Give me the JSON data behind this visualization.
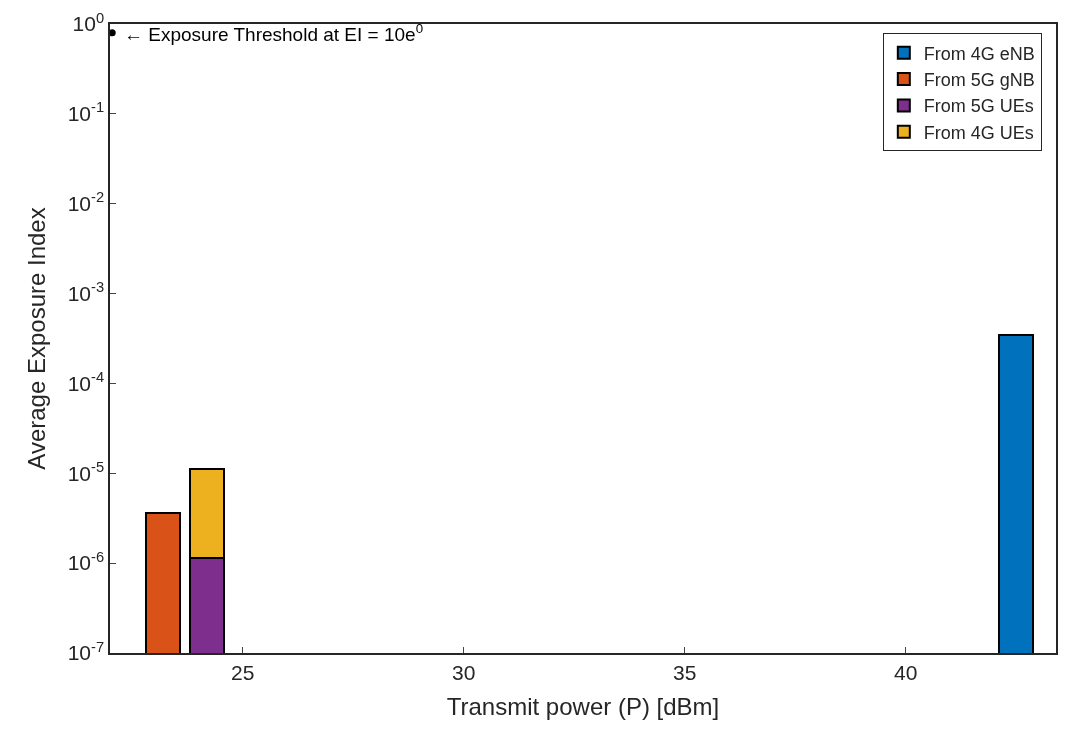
{
  "chart_data": {
    "type": "bar",
    "xlabel": "Transmit power (P) [dBm]",
    "ylabel": "Average Exposure Index",
    "stacked": true,
    "log": "y",
    "x": [
      23.2,
      24.2,
      42.5
    ],
    "legend": "top right",
    "xlim": [
      22,
      43.4
    ],
    "xticks": [
      25,
      30,
      35,
      40
    ],
    "ylim": [
      1e-07,
      1
    ],
    "yticks": [
      {
        "value": 1e-07,
        "label": "10$^{-7}$"
      },
      {
        "value": 1e-06,
        "label": "10$^{-6}$"
      },
      {
        "value": 1e-05,
        "label": "10$^{-5}$"
      },
      {
        "value": 0.0001,
        "label": "10$^{-4}$"
      },
      {
        "value": 0.001,
        "label": "10$^{-3}$"
      },
      {
        "value": 0.01,
        "label": "10$^{-2}$"
      },
      {
        "value": 0.1,
        "label": "10$^{-1}$"
      },
      {
        "value": 1,
        "label": "10$^{0}$"
      }
    ],
    "series": [
      {
        "name": "From 4G eNB",
        "color": "#0072bd",
        "values": [
          null,
          null,
          0.00035
        ]
      },
      {
        "name": "From 5G gNB",
        "color": "#d95319",
        "values": [
          3.6e-06,
          null,
          null
        ]
      },
      {
        "name": "From 5G UEs",
        "color": "#7e2f8e",
        "values": [
          null,
          1.15e-06,
          null
        ]
      },
      {
        "name": "From 4G UEs",
        "color": "#edb120",
        "values": [
          null,
          9.9e-06,
          null
        ]
      },
      {
        "type": "scatter",
        "color": "#000000",
        "marker": "circle",
        "x": [
          22.05
        ],
        "values": [
          0.8
        ]
      }
    ],
    "annotations": [
      {
        "text": "← Exposure Threshold at EI = 10e$^{0}$",
        "x": 22.05,
        "y": 0.8
      }
    ]
  }
}
